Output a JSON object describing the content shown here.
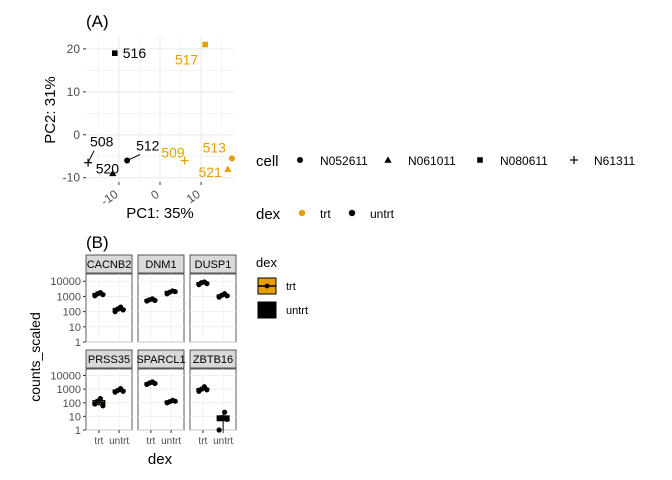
{
  "colors": {
    "trt": "#E69F00",
    "untrt": "#000000",
    "panel_bg": "#ffffff",
    "grid": "#ebebeb",
    "strip_bg": "#d9d9d9"
  },
  "chart_data": [
    {
      "type": "scatter",
      "panel_label": "(A)",
      "xlabel": "PC1: 35%",
      "ylabel": "PC2: 31%",
      "xlim": [
        -18,
        18
      ],
      "ylim": [
        -11,
        23
      ],
      "x_ticks": [
        -10,
        0,
        10
      ],
      "x_tick_labels": [
        "-10",
        "0",
        "10"
      ],
      "y_ticks": [
        -10,
        0,
        10,
        20
      ],
      "y_tick_labels": [
        "-10",
        "0",
        "10",
        "20"
      ],
      "grid": true,
      "points": [
        {
          "label": "516",
          "x": -11.0,
          "y": 19.0,
          "cell": "N080611",
          "dex": "untrt"
        },
        {
          "label": "517",
          "x": 11.0,
          "y": 21.0,
          "cell": "N080611",
          "dex": "trt"
        },
        {
          "label": "508",
          "x": -17.5,
          "y": -6.5,
          "cell": "N61311",
          "dex": "untrt"
        },
        {
          "label": "520",
          "x": -11.5,
          "y": -9.0,
          "cell": "N061011",
          "dex": "untrt"
        },
        {
          "label": "512",
          "x": -8.0,
          "y": -6.0,
          "cell": "N052611",
          "dex": "untrt"
        },
        {
          "label": "509",
          "x": 6.0,
          "y": -6.0,
          "cell": "N61311",
          "dex": "trt"
        },
        {
          "label": "513",
          "x": 17.5,
          "y": -5.5,
          "cell": "N052611",
          "dex": "trt"
        },
        {
          "label": "521",
          "x": 16.5,
          "y": -8.0,
          "cell": "N061011",
          "dex": "trt"
        }
      ],
      "legend_cell": {
        "title": "cell",
        "entries": [
          "N052611",
          "N061011",
          "N080611",
          "N61311"
        ]
      },
      "legend_dex": {
        "title": "dex",
        "entries": [
          "trt",
          "untrt"
        ]
      }
    },
    {
      "type": "box",
      "panel_label": "(B)",
      "xlabel": "dex",
      "ylabel": "counts_scaled",
      "scale": "log10",
      "ylim": [
        1,
        30000
      ],
      "y_ticks": [
        1,
        10,
        100,
        1000,
        10000
      ],
      "y_tick_labels": [
        "1",
        "10",
        "100",
        "1000",
        "10000"
      ],
      "categories": [
        "trt",
        "untrt"
      ],
      "legend": {
        "title": "dex",
        "entries": [
          "trt",
          "untrt"
        ]
      },
      "facets": [
        {
          "name": "CACNB2",
          "trt": [
            1100,
            1500,
            1800,
            1300
          ],
          "untrt": [
            100,
            150,
            200,
            130
          ]
        },
        {
          "name": "DNM1",
          "trt": [
            500,
            600,
            700,
            550
          ],
          "untrt": [
            1500,
            1900,
            2300,
            2100
          ]
        },
        {
          "name": "DUSP1",
          "trt": [
            6000,
            8000,
            9000,
            7000
          ],
          "untrt": [
            900,
            1200,
            1500,
            1100
          ]
        },
        {
          "name": "PRSS35",
          "trt": [
            80,
            130,
            200,
            60
          ],
          "untrt": [
            600,
            800,
            1100,
            700
          ]
        },
        {
          "name": "SPARCL1",
          "trt": [
            2200,
            2800,
            3400,
            2600
          ],
          "untrt": [
            100,
            120,
            150,
            130
          ]
        },
        {
          "name": "ZBTB16",
          "trt": [
            700,
            1000,
            1500,
            900
          ],
          "untrt": [
            1,
            8,
            20,
            6
          ]
        }
      ]
    }
  ]
}
